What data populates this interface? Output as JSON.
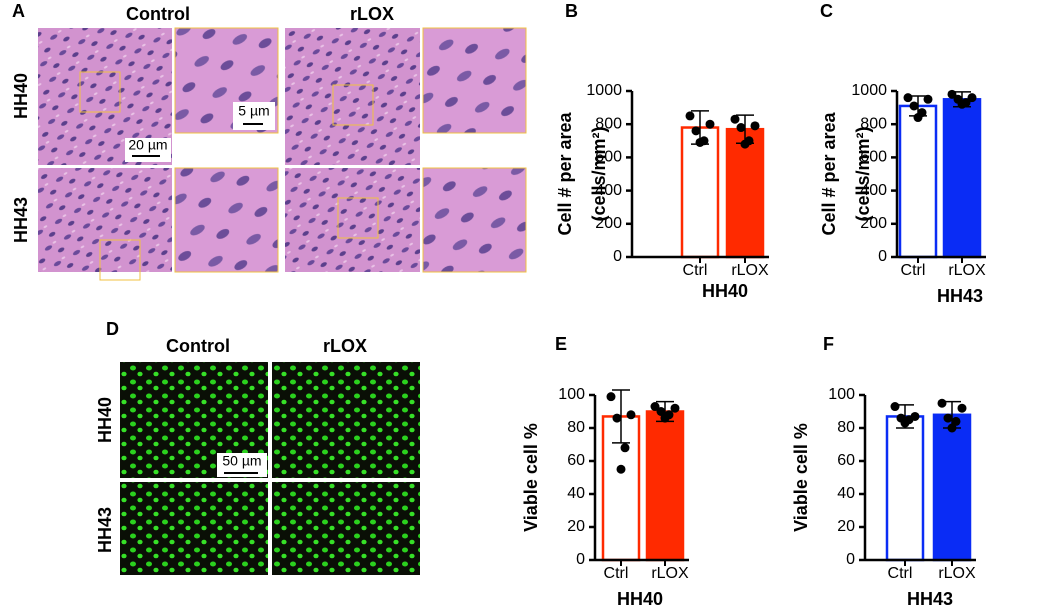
{
  "panel_a": {
    "label": "A",
    "columns": [
      "Control",
      "rLOX"
    ],
    "rows": [
      "HH40",
      "HH43"
    ],
    "scale_bars": [
      "20 µm",
      "5 µm"
    ]
  },
  "panel_d": {
    "label": "D",
    "columns": [
      "Control",
      "rLOX"
    ],
    "rows": [
      "HH40",
      "HH43"
    ],
    "scale_bars": [
      "50 µm"
    ]
  },
  "chart_data": [
    {
      "type": "bar",
      "panel": "B",
      "ylabel": [
        "Cell # per area",
        "(cells/mm²)"
      ],
      "xlabel": "HH40",
      "categories": [
        "Ctrl",
        "rLOX"
      ],
      "values": [
        780,
        770
      ],
      "errors": [
        100,
        85
      ],
      "points": [
        [
          850,
          800,
          760,
          700,
          690
        ],
        [
          830,
          790,
          780,
          700,
          680
        ]
      ],
      "edge_color": "#ff2a00",
      "bar_fill": [
        "#ffffff",
        "#ff2a00"
      ],
      "ylim": [
        0,
        1000
      ],
      "yticks": [
        0,
        200,
        400,
        600,
        800,
        1000
      ]
    },
    {
      "type": "bar",
      "panel": "C",
      "ylabel": [
        "Cell # per area",
        "(cells/mm²)"
      ],
      "xlabel": "HH43",
      "categories": [
        "Ctrl",
        "rLOX"
      ],
      "values": [
        910,
        950
      ],
      "errors": [
        60,
        45
      ],
      "points": [
        [
          960,
          950,
          910,
          870,
          840
        ],
        [
          980,
          960,
          950,
          930,
          920
        ]
      ],
      "edge_color": "#0a2cf5",
      "bar_fill": [
        "#ffffff",
        "#0a2cf5"
      ],
      "ylim": [
        0,
        1000
      ],
      "yticks": [
        0,
        200,
        400,
        600,
        800,
        1000
      ]
    },
    {
      "type": "bar",
      "panel": "E",
      "ylabel": [
        "Viable cell %"
      ],
      "xlabel": "HH40",
      "categories": [
        "Ctrl",
        "rLOX"
      ],
      "values": [
        87,
        90
      ],
      "errors": [
        16,
        6
      ],
      "points": [
        [
          99,
          88,
          86,
          68,
          55
        ],
        [
          93,
          92,
          90,
          88,
          86
        ]
      ],
      "edge_color": "#ff2a00",
      "bar_fill": [
        "#ffffff",
        "#ff2a00"
      ],
      "ylim": [
        0,
        100
      ],
      "yticks": [
        0,
        20,
        40,
        60,
        80,
        100
      ]
    },
    {
      "type": "bar",
      "panel": "F",
      "ylabel": [
        "Viable cell %"
      ],
      "xlabel": "HH43",
      "categories": [
        "Ctrl",
        "rLOX"
      ],
      "values": [
        87,
        88
      ],
      "errors": [
        7,
        8
      ],
      "points": [
        [
          93,
          87,
          86,
          85,
          83
        ],
        [
          95,
          92,
          86,
          84,
          80
        ]
      ],
      "edge_color": "#0a2cf5",
      "bar_fill": [
        "#ffffff",
        "#0a2cf5"
      ],
      "ylim": [
        0,
        100
      ],
      "yticks": [
        0,
        20,
        40,
        60,
        80,
        100
      ]
    }
  ]
}
